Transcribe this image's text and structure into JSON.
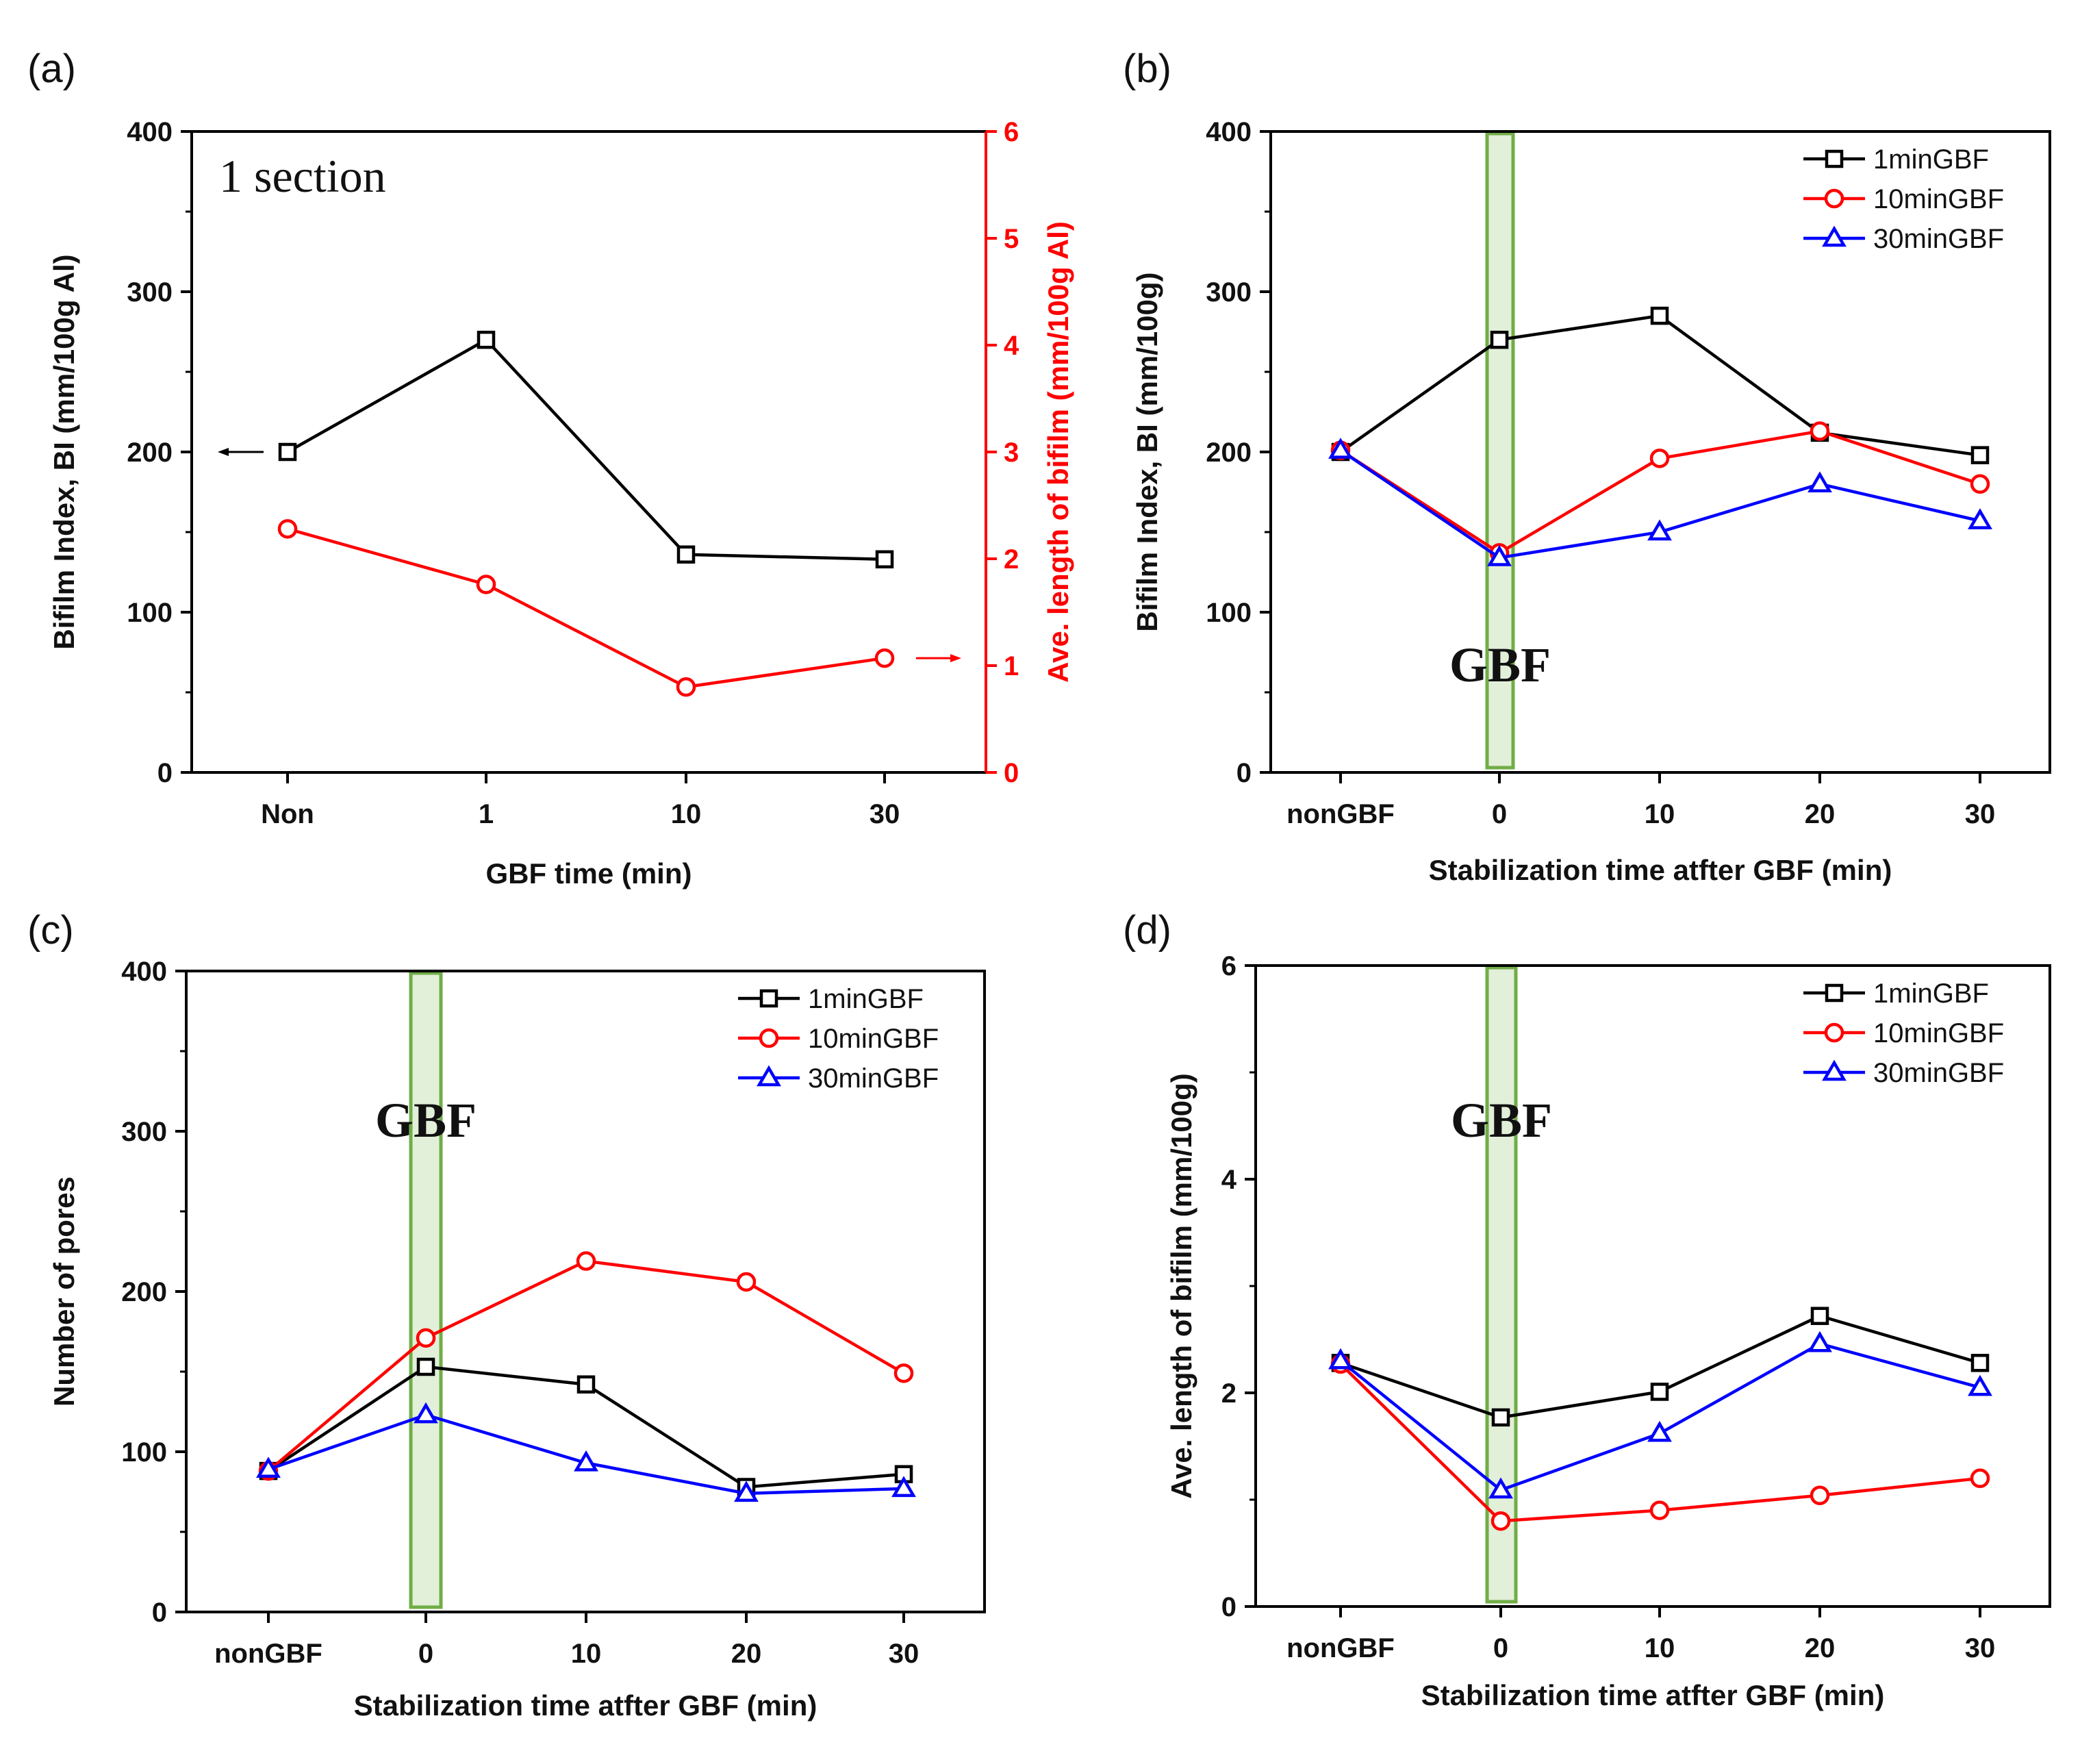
{
  "chart_data": [
    {
      "id": "a",
      "panel_label": "(a)",
      "type": "line",
      "annotation": "1 section",
      "categories": [
        "Non",
        "1",
        "10",
        "30"
      ],
      "xlabel": "GBF time (min)",
      "ylabel": "Bifilm Index, BI (mm/100g Al)",
      "ylim": [
        0,
        400
      ],
      "yticks": [
        "0",
        "100",
        "200",
        "300",
        "400"
      ],
      "y2label": "Ave. length of bifilm (mm/100g Al)",
      "y2lim": [
        0,
        6
      ],
      "y2ticks": [
        "0",
        "1",
        "2",
        "3",
        "4",
        "5",
        "6"
      ],
      "series": [
        {
          "name": "Bifilm Index",
          "axis": "left",
          "color": "#000000",
          "marker": "square",
          "values": [
            200,
            270,
            136,
            133
          ]
        },
        {
          "name": "Ave. length of bifilm",
          "axis": "right",
          "color": "#ff0000",
          "marker": "circle",
          "values": [
            2.28,
            1.76,
            0.8,
            1.07
          ]
        }
      ]
    },
    {
      "id": "b",
      "panel_label": "(b)",
      "type": "line",
      "categories": [
        "nonGBF",
        "0",
        "10",
        "20",
        "30"
      ],
      "xlabel": "Stabilization time atfter GBF (min)",
      "ylabel": "Bifilm Index, BI (mm/100g)",
      "ylim": [
        0,
        400
      ],
      "yticks": [
        "0",
        "100",
        "200",
        "300",
        "400"
      ],
      "band_label": "GBF",
      "series": [
        {
          "name": "1minGBF",
          "color": "#000000",
          "marker": "square",
          "values": [
            200,
            270,
            285,
            212,
            198
          ]
        },
        {
          "name": "10minGBF",
          "color": "#ff0000",
          "marker": "circle",
          "values": [
            201,
            137,
            196,
            213,
            180
          ]
        },
        {
          "name": "30minGBF",
          "color": "#0000ff",
          "marker": "triangle",
          "values": [
            201,
            134,
            150,
            180,
            157
          ]
        }
      ]
    },
    {
      "id": "c",
      "panel_label": "(c)",
      "type": "line",
      "categories": [
        "nonGBF",
        "0",
        "10",
        "20",
        "30"
      ],
      "xlabel": "Stabilization time atfter GBF (min)",
      "ylabel": "Number of pores",
      "ylim": [
        0,
        400
      ],
      "yticks": [
        "0",
        "100",
        "200",
        "300",
        "400"
      ],
      "band_label": "GBF",
      "series": [
        {
          "name": "1minGBF",
          "color": "#000000",
          "marker": "square",
          "values": [
            88,
            153,
            142,
            78,
            86
          ]
        },
        {
          "name": "10minGBF",
          "color": "#ff0000",
          "marker": "circle",
          "values": [
            88,
            171,
            219,
            206,
            149
          ]
        },
        {
          "name": "30minGBF",
          "color": "#0000ff",
          "marker": "triangle",
          "values": [
            89,
            123,
            93,
            74,
            77
          ]
        }
      ]
    },
    {
      "id": "d",
      "panel_label": "(d)",
      "type": "line",
      "categories": [
        "nonGBF",
        "0",
        "10",
        "20",
        "30"
      ],
      "xlabel": "Stabilization time atfter GBF (min)",
      "ylabel": "Ave. length of bifilm (mm/100g)",
      "ylim": [
        0,
        6
      ],
      "yticks": [
        "0",
        "2",
        "4",
        "6"
      ],
      "band_label": "GBF",
      "series": [
        {
          "name": "1minGBF",
          "color": "#000000",
          "marker": "square",
          "values": [
            2.28,
            1.77,
            2.01,
            2.72,
            2.28
          ]
        },
        {
          "name": "10minGBF",
          "color": "#ff0000",
          "marker": "circle",
          "values": [
            2.27,
            0.8,
            0.9,
            1.04,
            1.2
          ]
        },
        {
          "name": "30minGBF",
          "color": "#0000ff",
          "marker": "triangle",
          "values": [
            2.3,
            1.09,
            1.62,
            2.46,
            2.05
          ]
        }
      ]
    }
  ]
}
